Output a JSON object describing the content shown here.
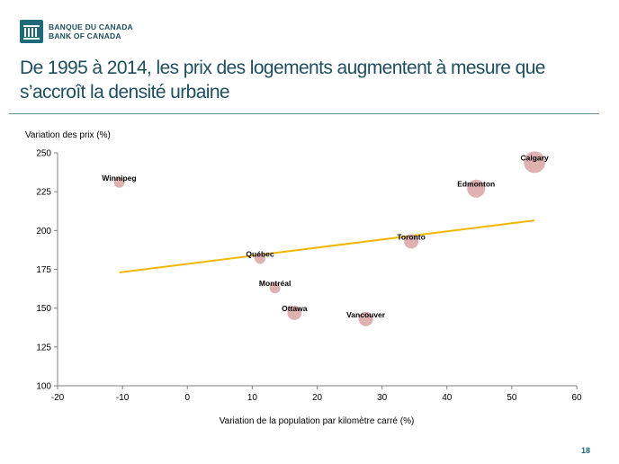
{
  "brand": {
    "name_fr": "BANQUE DU CANADA",
    "name_en": "BANK OF CANADA",
    "mark_color": "#1f6a7a"
  },
  "slide": {
    "title": "De 1995 à 2014, les prix des logements augmentent à mesure que s’accroît la densité urbaine",
    "page_number": "18"
  },
  "chart_data": {
    "type": "scatter",
    "title": "",
    "xlabel": "Variation de la population par kilomètre carré (%)",
    "ylabel": "Variation des prix (%)",
    "xlim": [
      -20,
      60
    ],
    "ylim": [
      100,
      250
    ],
    "x_ticks": [
      -20,
      -10,
      0,
      10,
      20,
      30,
      40,
      50,
      60
    ],
    "y_ticks": [
      100,
      125,
      150,
      175,
      200,
      225,
      250
    ],
    "grid": false,
    "legend": "none",
    "colors": {
      "points": "#d9a3a3",
      "trend": "#f2b705",
      "axis": "#808080"
    },
    "points": [
      {
        "label": "Winnipeg",
        "x": -10.5,
        "y": 231,
        "weight": 1
      },
      {
        "label": "Québec",
        "x": 11.2,
        "y": 182,
        "weight": 1
      },
      {
        "label": "Montréal",
        "x": 13.5,
        "y": 163,
        "weight": 1
      },
      {
        "label": "Ottawa",
        "x": 16.5,
        "y": 147,
        "weight": 2
      },
      {
        "label": "Vancouver",
        "x": 27.5,
        "y": 143,
        "weight": 2
      },
      {
        "label": "Toronto",
        "x": 34.5,
        "y": 193,
        "weight": 2
      },
      {
        "label": "Edmonton",
        "x": 44.5,
        "y": 227,
        "weight": 3
      },
      {
        "label": "Calgary",
        "x": 53.5,
        "y": 244,
        "weight": 4
      }
    ],
    "trend_line": {
      "x": [
        -10.5,
        53.5
      ],
      "y": [
        173,
        206.5
      ]
    }
  }
}
